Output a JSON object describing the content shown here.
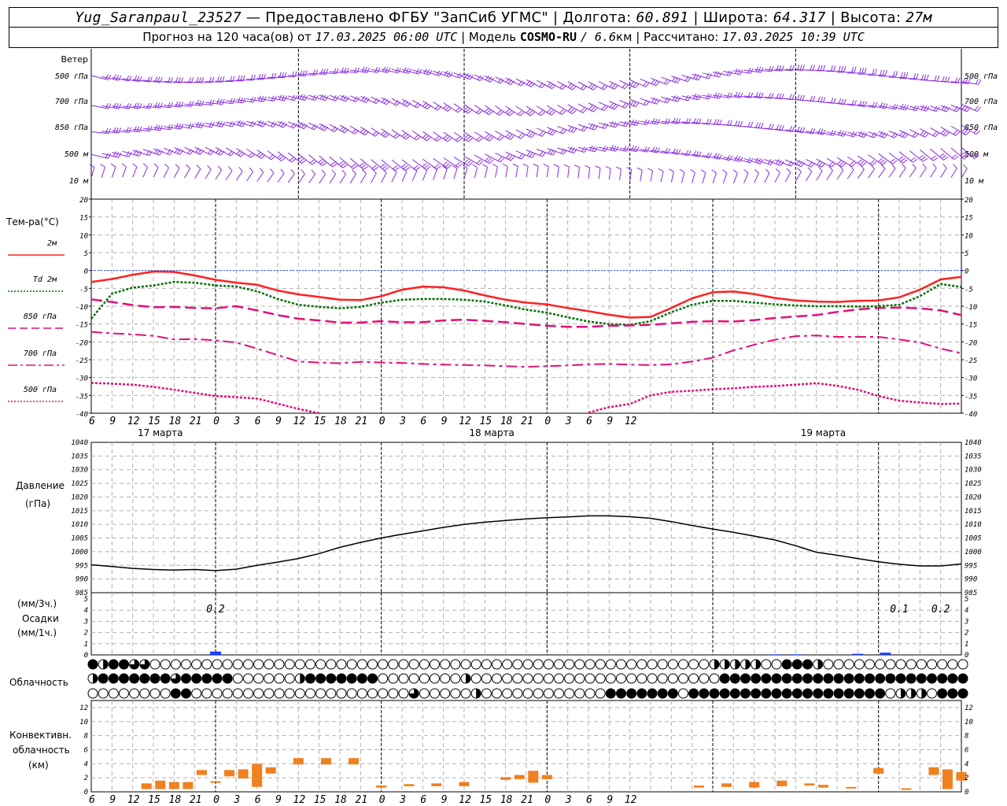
{
  "header": {
    "station": "Yug_Saranpaul_23527",
    "dash": " — ",
    "provider": "Предоставлено ФГБУ \"ЗапСиб УГМС\"",
    "lon_label": "Долгота:",
    "lon": "60.891",
    "lat_label": "Широта:",
    "lat": "64.317",
    "alt_label": "Высота:",
    "alt": "27м",
    "forecast_prefix": "Прогноз на 120 часа(ов) от",
    "forecast_start": "17.03.2025 06:00 UTC",
    "model_label": "Модель",
    "model_name": "COSMO-RU",
    "model_res": "/ 6.6",
    "model_res_unit": "км",
    "calc_label": "Рассчитано:",
    "calc_time": "17.03.2025 10:39 UTC",
    "sep": " | "
  },
  "wind_panel": {
    "title": "Ветер",
    "levels": [
      "500 гПа",
      "700 гПа",
      "850 гПа",
      "500 м",
      "10 м"
    ]
  },
  "temp_panel": {
    "title": "Тем-ра(°C)",
    "legend": [
      {
        "label": "2м",
        "color": "#ff0000",
        "style": "solid"
      },
      {
        "label": "Td 2м",
        "color": "#007000",
        "style": "dotted"
      },
      {
        "label": "850 гПа",
        "color": "#e0107a",
        "style": "dashed"
      },
      {
        "label": "700 гПа",
        "color": "#e0107a",
        "style": "dashdot"
      },
      {
        "label": "500 гПа",
        "color": "#e0107a",
        "style": "dotted"
      }
    ],
    "ticks": [
      "20",
      "15",
      "10",
      "5",
      "0",
      "-5",
      "-10",
      "-15",
      "-20",
      "-25",
      "-30",
      "-35",
      "-40"
    ]
  },
  "time_axis": {
    "hour_labels": [
      "6",
      "9",
      "12",
      "15",
      "18",
      "21",
      "0",
      "3",
      "6",
      "9",
      "12",
      "15",
      "18",
      "21",
      "0",
      "3",
      "6",
      "9",
      "12",
      "15",
      "18",
      "21",
      "0",
      "3",
      "6",
      "9",
      "12"
    ],
    "day_labels": [
      "17 марта",
      "18 марта",
      "19 марта"
    ]
  },
  "pressure_panel": {
    "title": "Давление",
    "unit": "(гПа)",
    "ticks": [
      "1040",
      "1035",
      "1030",
      "1025",
      "1020",
      "1015",
      "1010",
      "1005",
      "1000",
      "995",
      "990",
      "985"
    ]
  },
  "precip_panel": {
    "unit3h": "(мм/3ч.)",
    "title": "Осадки",
    "unit1h": "(мм/1ч.)",
    "ticks": [
      "5",
      "4",
      "3",
      "2",
      "1",
      "0"
    ],
    "annotations": [
      "0.2",
      "0.1",
      "0.2"
    ]
  },
  "cloud_panel": {
    "title": "Облачность"
  },
  "conv_panel": {
    "title1": "Конвективн.",
    "title2": "облачность",
    "unit": "(км)",
    "ticks": [
      "12",
      "10",
      "8",
      "6",
      "4",
      "2",
      "0"
    ]
  },
  "colors": {
    "t2m": "#ff2020",
    "td2m": "#007000",
    "upper": "#e0107a",
    "wind": "#8a2be2",
    "precip": "#2040ff",
    "conv": "#f08020",
    "grid": "#b0b0b0"
  },
  "chart_data": [
    {
      "type": "line",
      "name": "temperature",
      "x_hours": [
        0,
        3,
        6,
        9,
        12,
        15,
        18,
        21,
        24,
        27,
        30,
        33,
        36,
        39,
        42,
        45,
        48,
        51,
        54,
        57,
        60,
        63,
        66,
        69,
        72,
        75,
        78,
        81,
        84,
        87,
        90,
        93,
        96,
        99,
        102,
        105,
        108,
        111,
        114,
        117,
        120,
        123,
        126
      ],
      "ylim": [
        -40,
        20
      ],
      "series": [
        {
          "name": "2м",
          "values": [
            -3.2,
            -2.4,
            -1.2,
            -0.3,
            -0.4,
            -1.4,
            -2.6,
            -3.4,
            -4.0,
            -5.6,
            -6.7,
            -7.4,
            -8.2,
            -8.3,
            -7.2,
            -5.4,
            -4.5,
            -4.7,
            -5.6,
            -7.0,
            -8.2,
            -9.0,
            -9.5,
            -10.5,
            -11.4,
            -12.4,
            -13.2,
            -13.0,
            -10.5,
            -7.8,
            -6.1,
            -5.9,
            -6.6,
            -7.7,
            -8.4,
            -8.7,
            -8.8,
            -8.5,
            -8.4,
            -7.5,
            -5.4,
            -2.5,
            -1.8
          ]
        },
        {
          "name": "Td 2м",
          "values": [
            -13.5,
            -6.5,
            -4.8,
            -4.2,
            -3.2,
            -3.4,
            -4.2,
            -4.5,
            -5.8,
            -8.0,
            -9.6,
            -10.2,
            -10.6,
            -10.2,
            -9.0,
            -8.2,
            -8.0,
            -8.0,
            -8.2,
            -8.7,
            -9.8,
            -11.0,
            -11.8,
            -13.1,
            -14.3,
            -15.0,
            -15.2,
            -14.2,
            -11.7,
            -9.6,
            -8.5,
            -8.5,
            -9.0,
            -9.5,
            -9.8,
            -10.0,
            -10.0,
            -10.1,
            -10.0,
            -9.6,
            -7.2,
            -3.8,
            -4.6
          ]
        },
        {
          "name": "850 гПа",
          "values": [
            -8.1,
            -8.8,
            -9.7,
            -10.3,
            -10.2,
            -10.5,
            -10.6,
            -10.0,
            -11.2,
            -12.5,
            -13.5,
            -14.0,
            -14.6,
            -14.6,
            -14.2,
            -14.5,
            -14.5,
            -14.0,
            -13.8,
            -14.1,
            -14.5,
            -15.0,
            -15.5,
            -15.8,
            -15.8,
            -15.5,
            -15.4,
            -15.2,
            -14.8,
            -14.4,
            -14.2,
            -14.3,
            -13.9,
            -13.3,
            -12.9,
            -12.5,
            -11.6,
            -10.9,
            -10.5,
            -10.4,
            -10.6,
            -11.2,
            -12.5
          ]
        },
        {
          "name": "700 гПа",
          "values": [
            -17.2,
            -17.6,
            -17.9,
            -18.3,
            -19.3,
            -19.2,
            -19.6,
            -20.2,
            -21.9,
            -23.7,
            -25.5,
            -25.8,
            -26.0,
            -25.6,
            -25.8,
            -25.9,
            -26.2,
            -26.4,
            -26.5,
            -26.6,
            -26.8,
            -27.0,
            -26.8,
            -26.6,
            -26.3,
            -26.2,
            -26.4,
            -26.5,
            -26.3,
            -25.5,
            -24.4,
            -22.4,
            -20.8,
            -19.4,
            -18.4,
            -18.2,
            -18.6,
            -18.6,
            -18.6,
            -19.3,
            -20.2,
            -21.9,
            -23.2
          ]
        },
        {
          "name": "500 гПа",
          "values": [
            -31.5,
            -31.7,
            -32.0,
            -32.6,
            -33.4,
            -34.3,
            -35.2,
            -35.5,
            -35.9,
            -37.3,
            -38.8,
            -40.6,
            null,
            null,
            null,
            null,
            null,
            null,
            null,
            null,
            null,
            null,
            null,
            null,
            -39.8,
            -38.3,
            -37.4,
            -35.0,
            -34.0,
            -33.7,
            -33.3,
            -33.0,
            -32.6,
            -32.4,
            -32.0,
            -31.6,
            -32.3,
            -33.4,
            -35.2,
            -36.5,
            -37.0,
            -37.4,
            -37.3
          ]
        }
      ]
    },
    {
      "type": "line",
      "name": "pressure",
      "x_hours": [
        0,
        3,
        6,
        9,
        12,
        15,
        18,
        21,
        24,
        27,
        30,
        33,
        36,
        39,
        42,
        45,
        48,
        51,
        54,
        57,
        60,
        63,
        66,
        69,
        72,
        75,
        78,
        81,
        84,
        87,
        90,
        93,
        96,
        99,
        102,
        105,
        108,
        111,
        114,
        117,
        120,
        123,
        126
      ],
      "ylim": [
        985,
        1040
      ],
      "series": [
        {
          "name": "Давление",
          "values": [
            995.2,
            994.6,
            993.9,
            993.5,
            993.3,
            993.5,
            993.1,
            993.6,
            995.0,
            996.2,
            997.5,
            999.3,
            1001.6,
            1003.4,
            1005.0,
            1006.4,
            1007.6,
            1008.9,
            1010.0,
            1010.8,
            1011.4,
            1012.0,
            1012.4,
            1012.7,
            1013.1,
            1013.1,
            1012.8,
            1012.2,
            1011.0,
            1009.6,
            1008.3,
            1007.1,
            1005.7,
            1004.3,
            1002.2,
            999.8,
            998.7,
            997.5,
            996.3,
            995.4,
            994.8,
            994.8,
            995.5
          ]
        }
      ]
    },
    {
      "type": "bar",
      "name": "precipitation",
      "x_hours": [
        18,
        99,
        102,
        111,
        115
      ],
      "values": [
        0.3,
        0.05,
        0.05,
        0.1,
        0.2
      ],
      "ylim": [
        0,
        5
      ]
    },
    {
      "type": "bar",
      "name": "convective_cloud",
      "ylim": [
        0,
        12
      ],
      "bars": [
        {
          "x": 8,
          "base": 0.4,
          "top": 1.2
        },
        {
          "x": 10,
          "base": 0.4,
          "top": 1.6
        },
        {
          "x": 12,
          "base": 0.4,
          "top": 1.4
        },
        {
          "x": 14,
          "base": 0.4,
          "top": 1.4
        },
        {
          "x": 16,
          "base": 2.4,
          "top": 3.1
        },
        {
          "x": 18,
          "base": 1.3,
          "top": 1.5
        },
        {
          "x": 20,
          "base": 2.2,
          "top": 3.1
        },
        {
          "x": 22,
          "base": 1.9,
          "top": 3.2
        },
        {
          "x": 24,
          "base": 0.7,
          "top": 4.0
        },
        {
          "x": 26,
          "base": 2.6,
          "top": 3.5
        },
        {
          "x": 30,
          "base": 3.9,
          "top": 4.8
        },
        {
          "x": 34,
          "base": 3.9,
          "top": 4.8
        },
        {
          "x": 38,
          "base": 3.9,
          "top": 4.8
        },
        {
          "x": 42,
          "base": 0.6,
          "top": 0.9
        },
        {
          "x": 46,
          "base": 0.8,
          "top": 1.1
        },
        {
          "x": 50,
          "base": 0.8,
          "top": 1.2
        },
        {
          "x": 54,
          "base": 0.8,
          "top": 1.4
        },
        {
          "x": 60,
          "base": 1.7,
          "top": 2.1
        },
        {
          "x": 62,
          "base": 1.8,
          "top": 2.4
        },
        {
          "x": 64,
          "base": 1.3,
          "top": 3.0
        },
        {
          "x": 66,
          "base": 1.8,
          "top": 2.4
        },
        {
          "x": 88,
          "base": 0.6,
          "top": 0.9
        },
        {
          "x": 92,
          "base": 0.7,
          "top": 1.2
        },
        {
          "x": 96,
          "base": 0.6,
          "top": 1.4
        },
        {
          "x": 100,
          "base": 0.8,
          "top": 1.6
        },
        {
          "x": 104,
          "base": 0.9,
          "top": 1.2
        },
        {
          "x": 106,
          "base": 0.6,
          "top": 1.0
        },
        {
          "x": 110,
          "base": 0.5,
          "top": 0.7
        },
        {
          "x": 114,
          "base": 2.6,
          "top": 3.4
        },
        {
          "x": 118,
          "base": 0.3,
          "top": 0.5
        },
        {
          "x": 122,
          "base": 2.4,
          "top": 3.5
        },
        {
          "x": 124,
          "base": 0.4,
          "top": 3.2
        },
        {
          "x": 126,
          "base": 1.6,
          "top": 2.8
        }
      ]
    }
  ]
}
